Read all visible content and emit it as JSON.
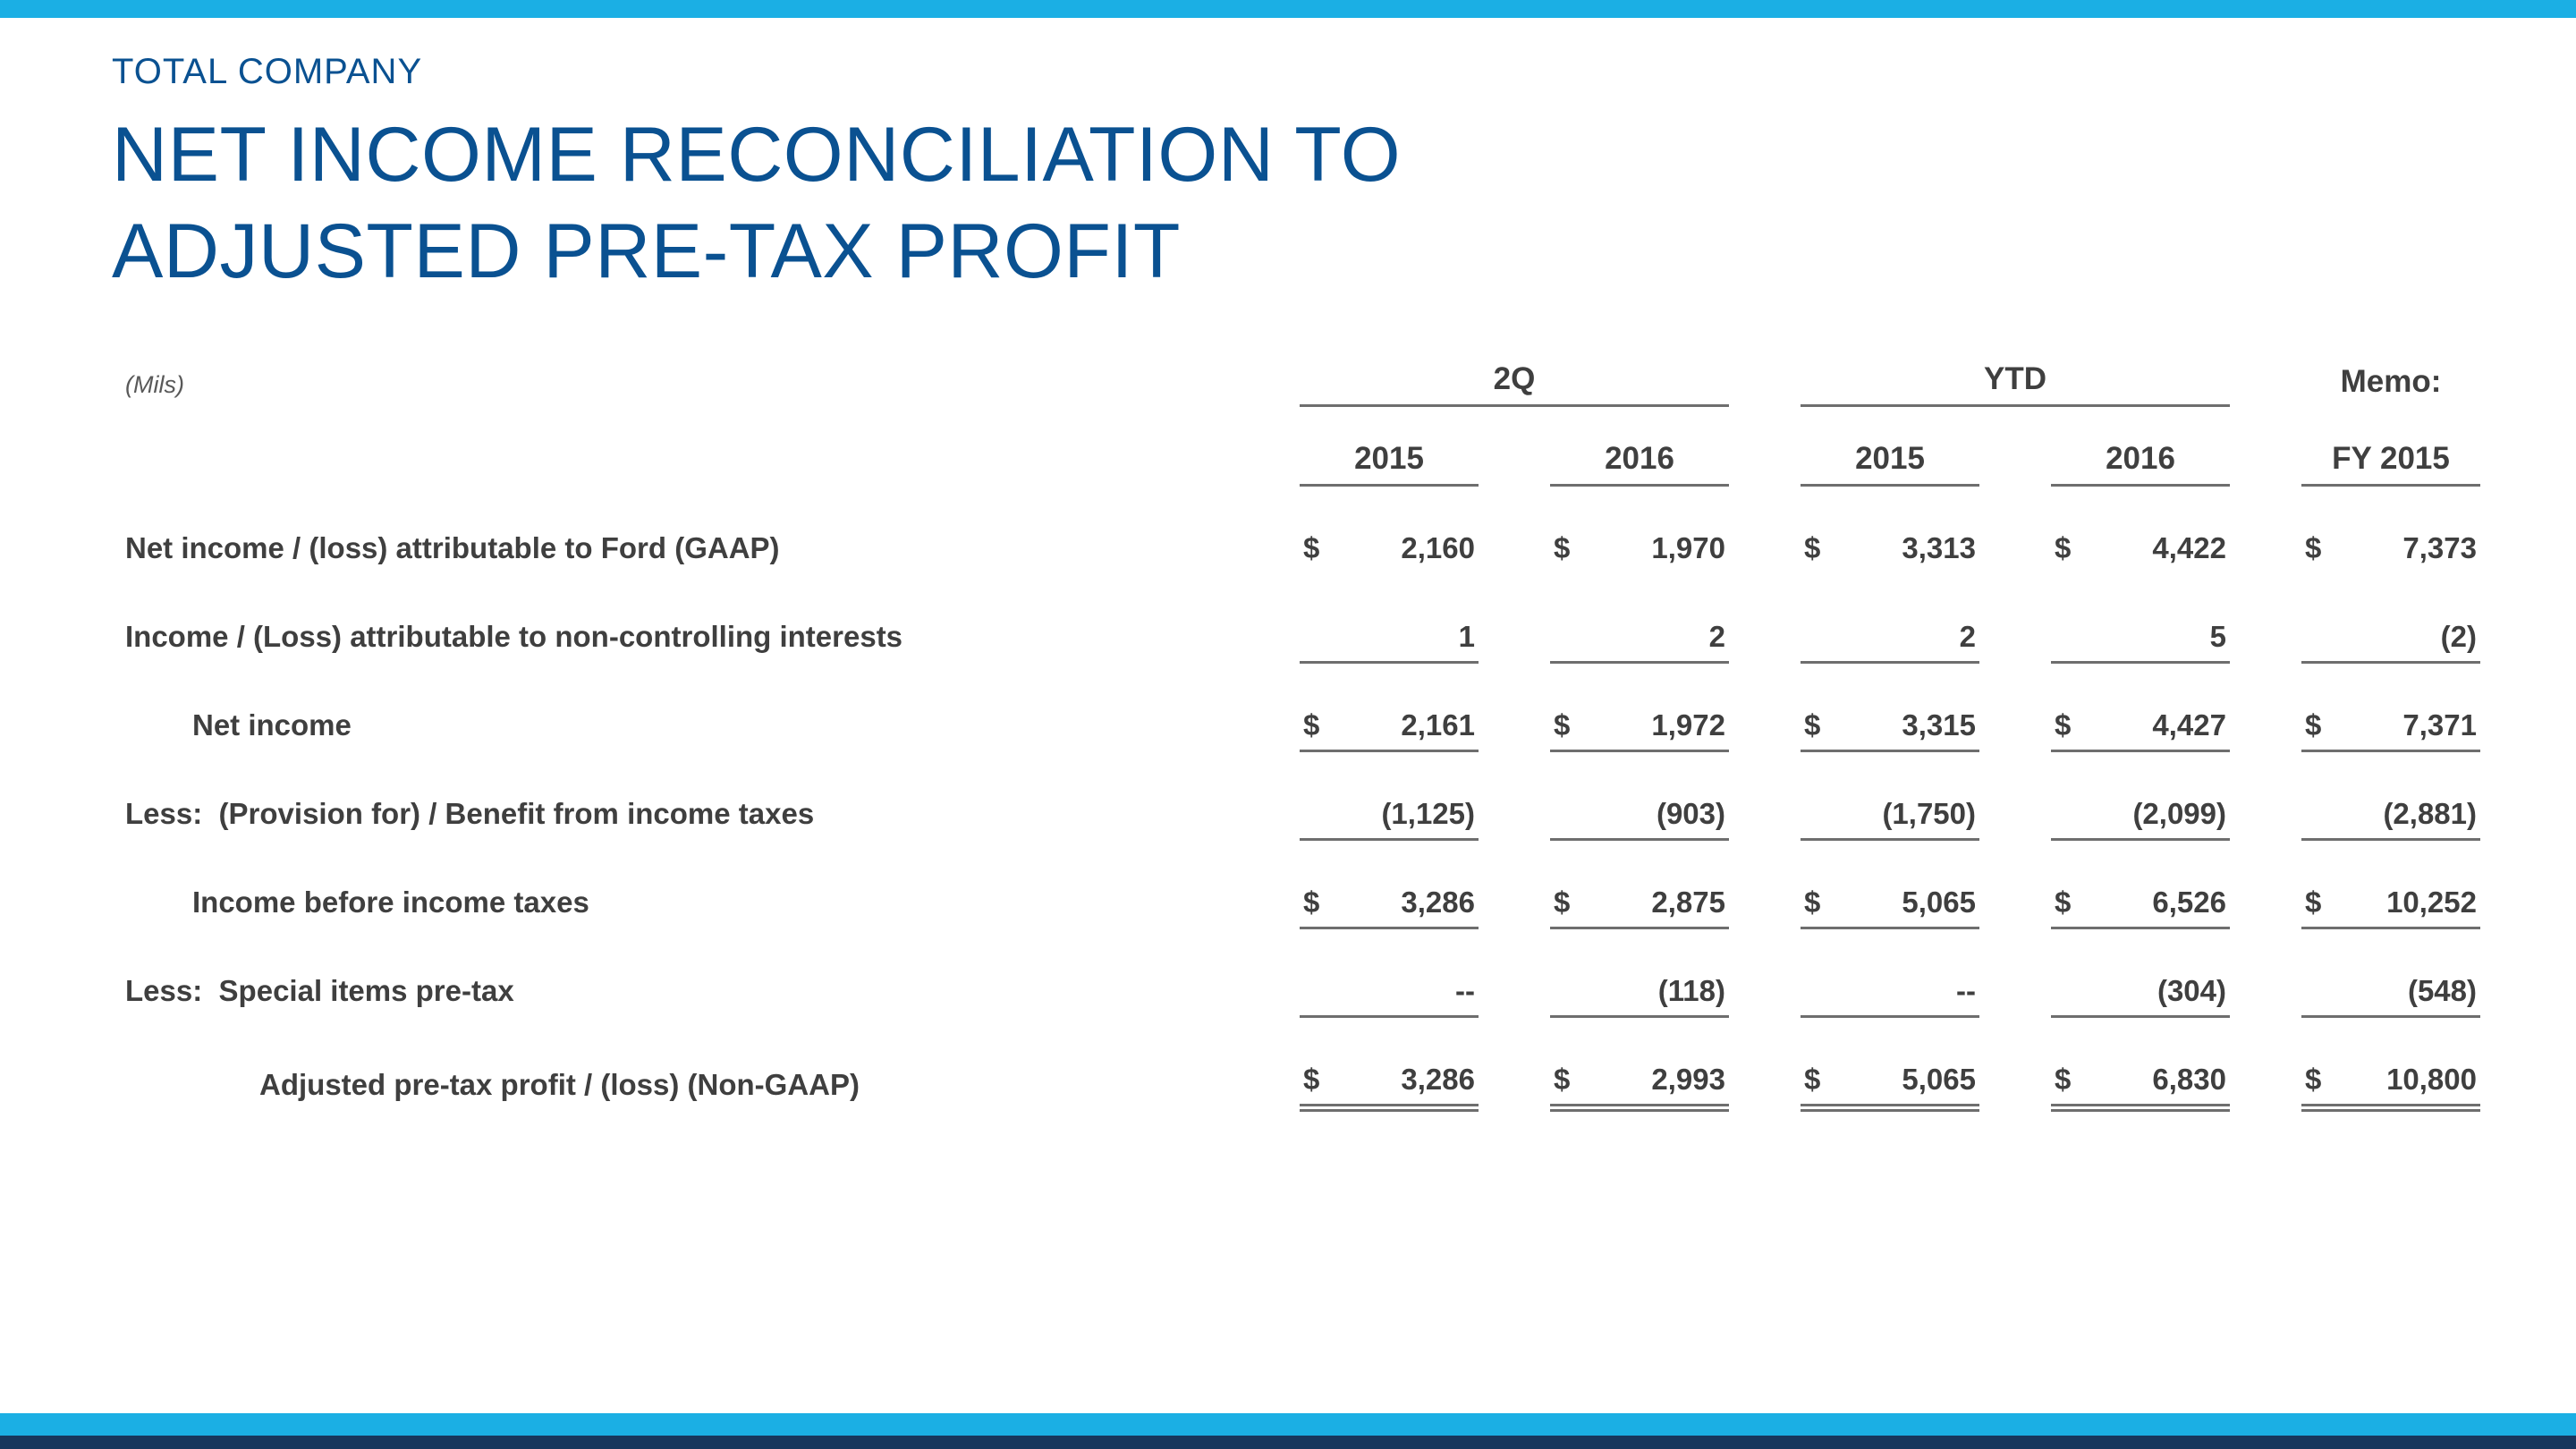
{
  "slide": {
    "eyebrow": "TOTAL COMPANY",
    "title_line1": "NET INCOME RECONCILIATION TO",
    "title_line2": "ADJUSTED PRE-TAX PROFIT"
  },
  "colors": {
    "accent_cyan": "#1BAFE4",
    "bottom_navy": "#17365D",
    "title_blue": "#0A5191",
    "text_gray": "#3F3F3F",
    "rule_gray": "#6E6E6E"
  },
  "table": {
    "units_label": "(Mils)",
    "currency_symbol": "$",
    "column_groups": [
      {
        "label": "2Q",
        "span": 2,
        "underline": true
      },
      {
        "label": "YTD",
        "span": 2,
        "underline": true
      },
      {
        "label": "Memo:",
        "span": 1,
        "underline": false
      }
    ],
    "columns": [
      "2015",
      "2016",
      "2015",
      "2016",
      "FY 2015"
    ],
    "rows": [
      {
        "label": "Net income / (loss) attributable to Ford (GAAP)",
        "indent": 0,
        "dollar": true,
        "underline": "none",
        "values": [
          "2,160",
          "1,970",
          "3,313",
          "4,422",
          "7,373"
        ]
      },
      {
        "label": "Income / (Loss) attributable to non-controlling interests",
        "indent": 0,
        "dollar": false,
        "underline": "single",
        "values": [
          "1",
          "2",
          "2",
          "5",
          "(2)"
        ]
      },
      {
        "label": "Net income",
        "indent": 1,
        "dollar": true,
        "underline": "single",
        "values": [
          "2,161",
          "1,972",
          "3,315",
          "4,427",
          "7,371"
        ]
      },
      {
        "label": "Less:  (Provision for) / Benefit from income taxes",
        "indent": 0,
        "dollar": false,
        "underline": "single",
        "values": [
          "(1,125)",
          "(903)",
          "(1,750)",
          "(2,099)",
          "(2,881)"
        ]
      },
      {
        "label": "Income before income taxes",
        "indent": 1,
        "dollar": true,
        "underline": "single",
        "values": [
          "3,286",
          "2,875",
          "5,065",
          "6,526",
          "10,252"
        ]
      },
      {
        "label": "Less:  Special items pre-tax",
        "indent": 0,
        "dollar": false,
        "underline": "single",
        "values": [
          "--",
          "(118)",
          "--",
          "(304)",
          "(548)"
        ]
      },
      {
        "label": "Adjusted pre-tax profit / (loss) (Non-GAAP)",
        "indent": 2,
        "dollar": true,
        "underline": "double",
        "values": [
          "3,286",
          "2,993",
          "5,065",
          "6,830",
          "10,800"
        ]
      }
    ]
  },
  "chart_data": {
    "type": "table",
    "title": "Total Company Net Income Reconciliation to Adjusted Pre-Tax Profit (Mils)",
    "columns": [
      "2Q 2015",
      "2Q 2016",
      "YTD 2015",
      "YTD 2016",
      "Memo: FY 2015"
    ],
    "rows": [
      {
        "label": "Net income / (loss) attributable to Ford (GAAP)",
        "values": [
          2160,
          1970,
          3313,
          4422,
          7373
        ]
      },
      {
        "label": "Income / (Loss) attributable to non-controlling interests",
        "values": [
          1,
          2,
          2,
          5,
          -2
        ]
      },
      {
        "label": "Net income",
        "values": [
          2161,
          1972,
          3315,
          4427,
          7371
        ]
      },
      {
        "label": "Less: (Provision for) / Benefit from income taxes",
        "values": [
          -1125,
          -903,
          -1750,
          -2099,
          -2881
        ]
      },
      {
        "label": "Income before income taxes",
        "values": [
          3286,
          2875,
          5065,
          6526,
          10252
        ]
      },
      {
        "label": "Less: Special items pre-tax",
        "values": [
          null,
          -118,
          null,
          -304,
          -548
        ]
      },
      {
        "label": "Adjusted pre-tax profit / (loss) (Non-GAAP)",
        "values": [
          3286,
          2993,
          5065,
          6830,
          10800
        ]
      }
    ]
  }
}
